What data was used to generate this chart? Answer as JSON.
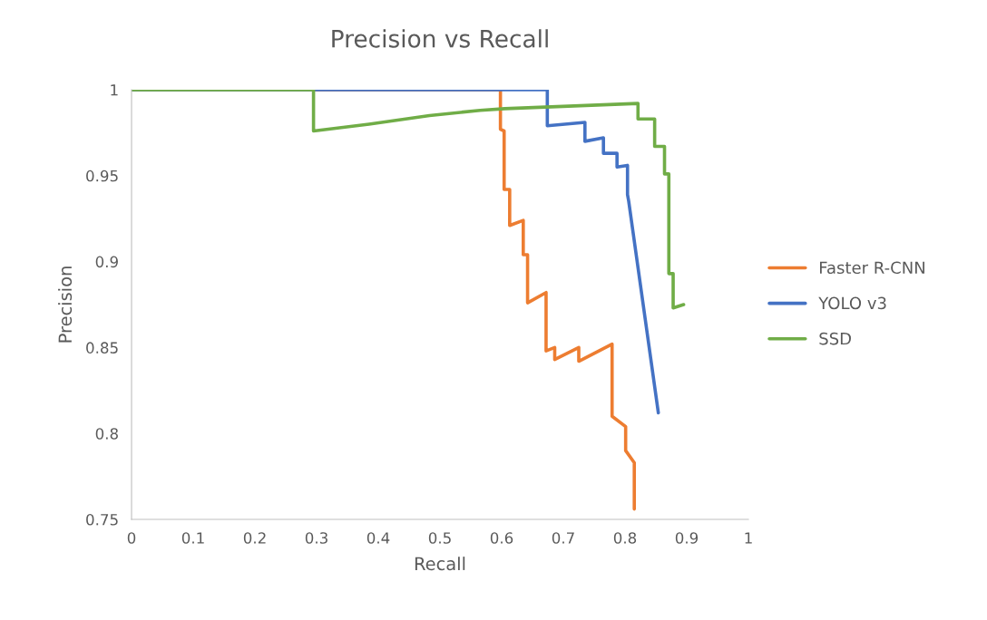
{
  "chart_data": {
    "type": "line",
    "title": "Precision vs Recall",
    "xlabel": "Recall",
    "ylabel": "Precision",
    "xlim": [
      0,
      1
    ],
    "ylim": [
      0.75,
      1
    ],
    "xticks": [
      0,
      0.1,
      0.2,
      0.3,
      0.4,
      0.5,
      0.6,
      0.7,
      0.8,
      0.9,
      1
    ],
    "yticks": [
      0.75,
      0.8,
      0.85,
      0.9,
      0.95,
      1
    ],
    "grid": false,
    "legend": "right",
    "marker": "none",
    "line_style": "solid",
    "series": [
      {
        "name": "Faster R-CNN",
        "color": "#ed7d31",
        "x": [
          0,
          0.598,
          0.598,
          0.604,
          0.604,
          0.613,
          0.613,
          0.635,
          0.635,
          0.642,
          0.642,
          0.672,
          0.672,
          0.686,
          0.686,
          0.725,
          0.725,
          0.779,
          0.779,
          0.801,
          0.801,
          0.815,
          0.815
        ],
        "values": [
          1,
          1,
          0.977,
          0.976,
          0.942,
          0.942,
          0.921,
          0.924,
          0.904,
          0.904,
          0.876,
          0.882,
          0.848,
          0.85,
          0.843,
          0.85,
          0.842,
          0.852,
          0.81,
          0.804,
          0.79,
          0.783,
          0.756
        ]
      },
      {
        "name": "YOLO v3",
        "color": "#4472c4",
        "x": [
          0,
          0.674,
          0.674,
          0.735,
          0.735,
          0.765,
          0.765,
          0.787,
          0.787,
          0.804,
          0.804,
          0.806,
          0.854
        ],
        "values": [
          1,
          1,
          0.979,
          0.981,
          0.97,
          0.972,
          0.963,
          0.963,
          0.955,
          0.956,
          0.939,
          0.935,
          0.812
        ]
      },
      {
        "name": "SSD",
        "color": "#70ad47",
        "x": [
          0,
          0.295,
          0.295,
          0.385,
          0.483,
          0.565,
          0.605,
          0.821,
          0.821,
          0.848,
          0.848,
          0.864,
          0.864,
          0.871,
          0.871,
          0.878,
          0.878,
          0.895
        ],
        "values": [
          1,
          1,
          0.976,
          0.98,
          0.985,
          0.988,
          0.989,
          0.992,
          0.983,
          0.983,
          0.967,
          0.967,
          0.951,
          0.951,
          0.893,
          0.893,
          0.873,
          0.875
        ]
      }
    ]
  }
}
